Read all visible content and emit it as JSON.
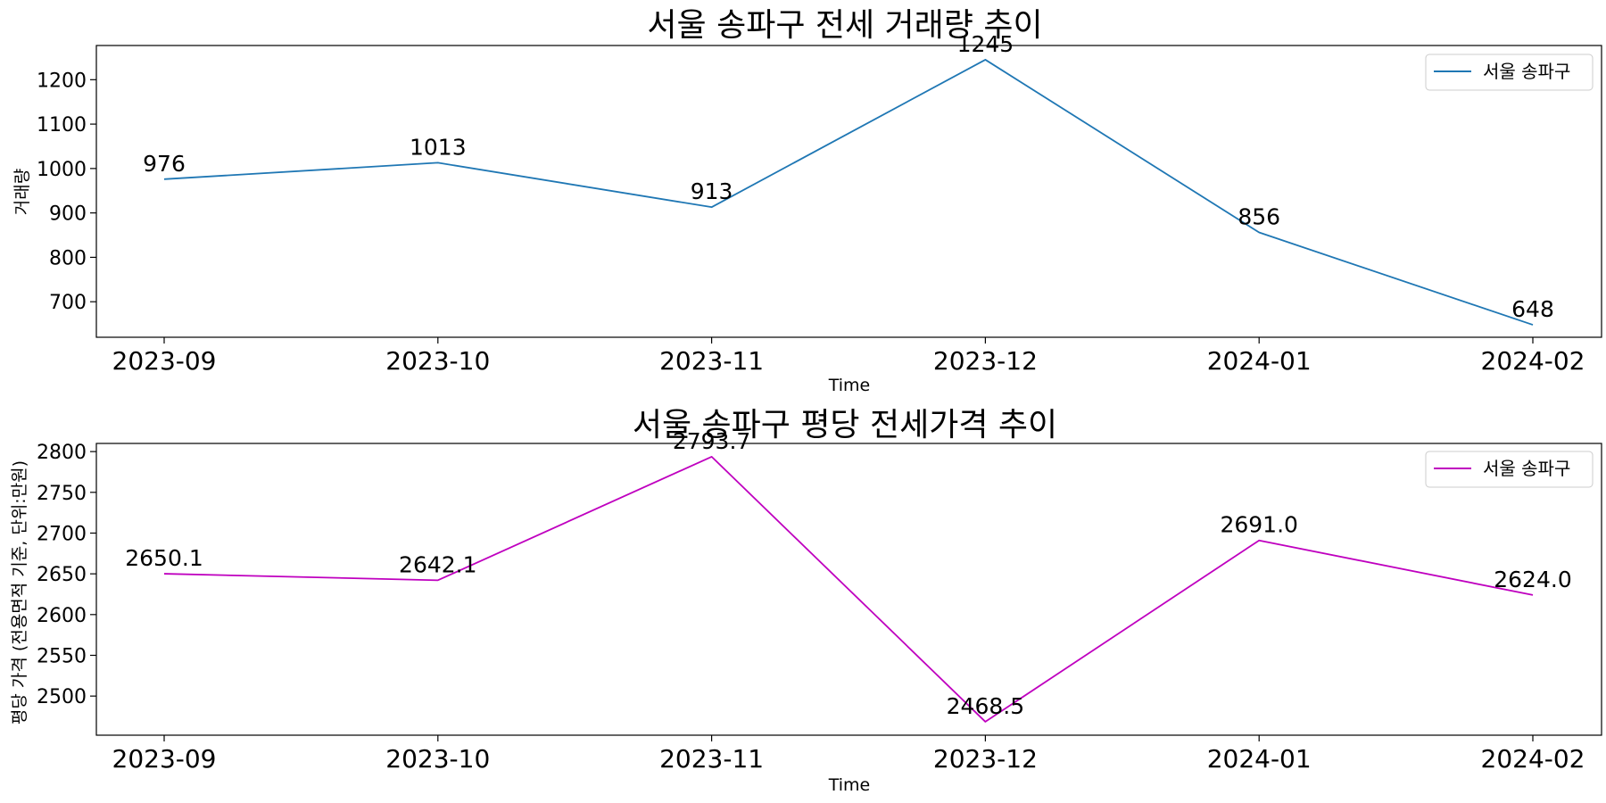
{
  "chart_data": [
    {
      "type": "line",
      "title": "서울 송파구 전세 거래량 추이",
      "xlabel": "Time",
      "ylabel": "거래량",
      "categories": [
        "2023-09",
        "2023-10",
        "2023-11",
        "2023-12",
        "2024-01",
        "2024-02"
      ],
      "series": [
        {
          "name": "서울 송파구",
          "color": "#1f77b4",
          "values": [
            976,
            1013,
            913,
            1245,
            856,
            648
          ]
        }
      ],
      "data_labels": [
        "976",
        "1013",
        "913",
        "1245",
        "856",
        "648"
      ],
      "yticks": [
        "700",
        "800",
        "900",
        "1000",
        "1100",
        "1200"
      ],
      "ylim": [
        620,
        1277
      ],
      "legend": "top-right",
      "grid": false
    },
    {
      "type": "line",
      "title": "서울 송파구 평당 전세가격 추이",
      "xlabel": "Time",
      "ylabel": "평당 가격 (전용면적 기준, 단위:만원)",
      "categories": [
        "2023-09",
        "2023-10",
        "2023-11",
        "2023-12",
        "2024-01",
        "2024-02"
      ],
      "series": [
        {
          "name": "서울 송파구",
          "color": "#bf00bf",
          "values": [
            2650.1,
            2642.1,
            2793.7,
            2468.5,
            2691.0,
            2624.0
          ]
        }
      ],
      "data_labels": [
        "2650.1",
        "2642.1",
        "2793.7",
        "2468.5",
        "2691.0",
        "2624.0"
      ],
      "yticks": [
        "2500",
        "2550",
        "2600",
        "2650",
        "2700",
        "2750",
        "2800"
      ],
      "ylim": [
        2452,
        2810
      ],
      "legend": "top-right",
      "grid": false
    }
  ]
}
